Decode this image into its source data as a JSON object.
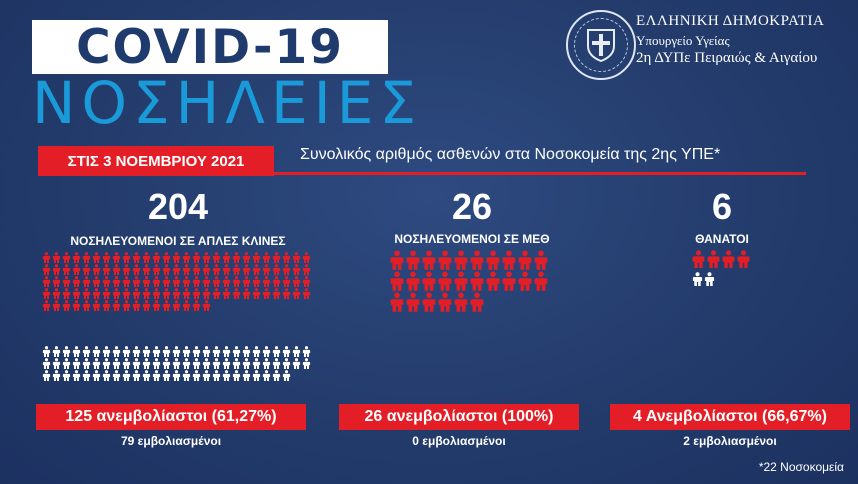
{
  "header": {
    "title": "COVID-19",
    "subtitle": "ΝΟΣΗΛΕΙΕΣ",
    "org_line1": "ΕΛΛΗΝΙΚΗ ΔΗΜΟΚΡΑΤΙΑ",
    "org_line2": "Υπουργείο Υγείας",
    "org_line3": "2η ΔΥΠε Πειραιώς & Αιγαίου",
    "date_label": "ΣΤΙΣ 3 ΝΟΕΜΒΡΙΟΥ 2021",
    "description": "Συνολικός αριθμός ασθενών στα Νοσοκομεία της 2ης ΥΠΕ*"
  },
  "colors": {
    "background": "#233c6c",
    "unvaccinated": "#e41e26",
    "vaccinated": "#ffffff",
    "subtitle": "#1a9ad8"
  },
  "stats": [
    {
      "total": "204",
      "label": "ΝΟΣΗΛΕΥΟΜΕΝΟΙ ΣΕ ΑΠΛΕΣ ΚΛΙΝΕΣ",
      "unvaccinated_count": 125,
      "vaccinated_count": 79,
      "unvaccinated_text": "125 ανεμβολίαστοι (61,27%)",
      "vaccinated_text": "79 εμβολιασμένοι"
    },
    {
      "total": "26",
      "label": "ΝΟΣΗΛΕΥΟΜΕΝΟΙ ΣΕ ΜΕΘ",
      "unvaccinated_count": 26,
      "vaccinated_count": 0,
      "unvaccinated_text": "26 ανεμβολίαστοι (100%)",
      "vaccinated_text": "0 εμβολιασμένοι"
    },
    {
      "total": "6",
      "label": "ΘΑΝΑΤΟΙ",
      "unvaccinated_count": 4,
      "vaccinated_count": 2,
      "unvaccinated_text": "4 Ανεμβολίαστοι (66,67%)",
      "vaccinated_text": "2 εμβολιασμένοι"
    }
  ],
  "footnote": "*22 Νοσοκομεία",
  "icons": [
    "person-icon",
    "seal-icon"
  ]
}
